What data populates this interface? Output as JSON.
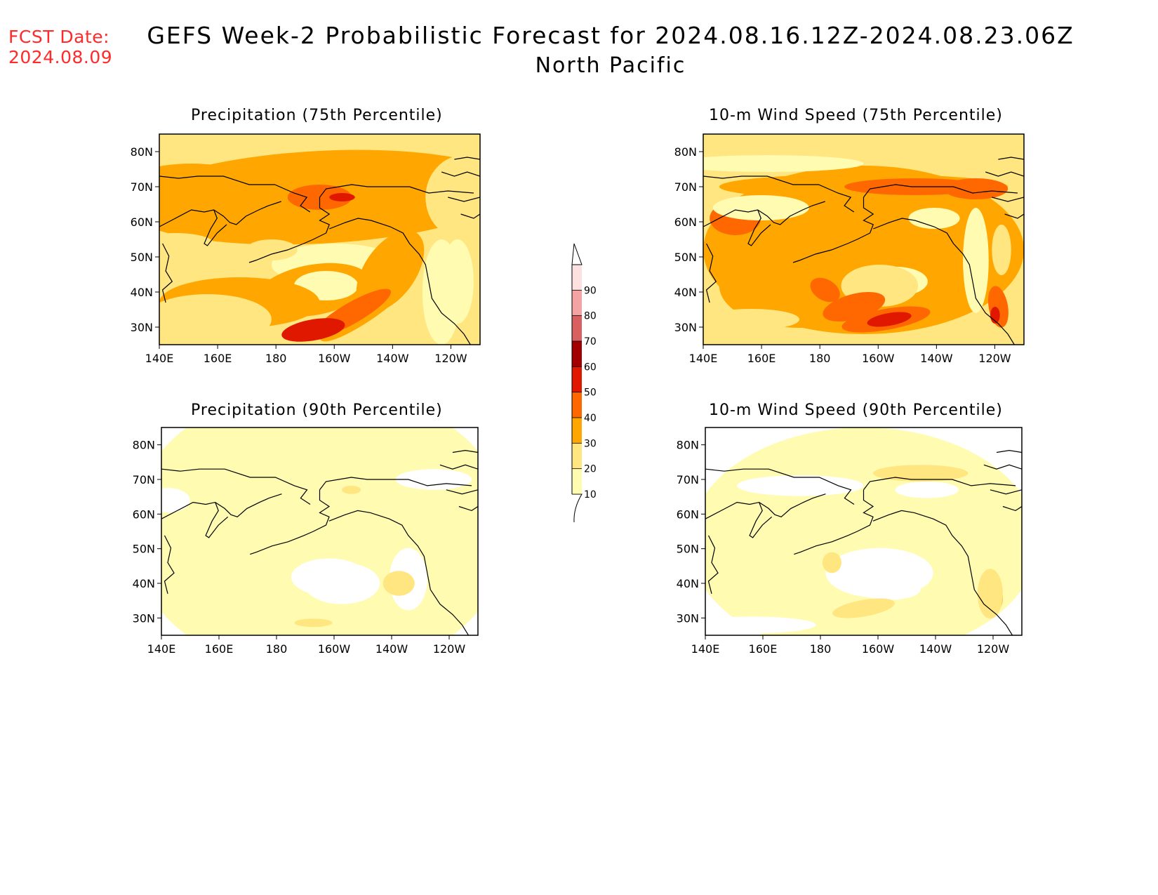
{
  "header": {
    "fcst_label": "FCST Date:",
    "fcst_date": "2024.08.09",
    "title": "GEFS Week-2 Probabilistic Forecast for 2024.08.16.12Z-2024.08.23.06Z",
    "region": "North Pacific"
  },
  "panels": [
    {
      "id": "precip75",
      "title": "Precipitation (75th Percentile)"
    },
    {
      "id": "wind75",
      "title": "10-m Wind Speed (75th Percentile)"
    },
    {
      "id": "precip90",
      "title": "Precipitation (90th Percentile)"
    },
    {
      "id": "wind90",
      "title": "10-m Wind Speed (90th Percentile)"
    }
  ],
  "axes": {
    "lon_labels": [
      "140E",
      "160E",
      "180",
      "160W",
      "140W",
      "120W"
    ],
    "lat_labels": [
      "80N",
      "70N",
      "60N",
      "50N",
      "40N",
      "30N"
    ]
  },
  "colorbar": {
    "levels": [
      "10",
      "20",
      "30",
      "40",
      "50",
      "60",
      "70",
      "80",
      "90"
    ],
    "colors": [
      "#fffbb0",
      "#ffe680",
      "#ffa700",
      "#ff6800",
      "#e01800",
      "#a20000",
      "#d86060",
      "#f4a2a2",
      "#fde0e0"
    ]
  },
  "chart_data": {
    "type": "heatmap",
    "variable_units": "probability (%)",
    "lon_range": [
      "140E",
      "110W"
    ],
    "lat_range": [
      25,
      85
    ],
    "colorbar_levels": [
      10,
      20,
      30,
      40,
      50,
      60,
      70,
      80,
      90
    ]
  }
}
